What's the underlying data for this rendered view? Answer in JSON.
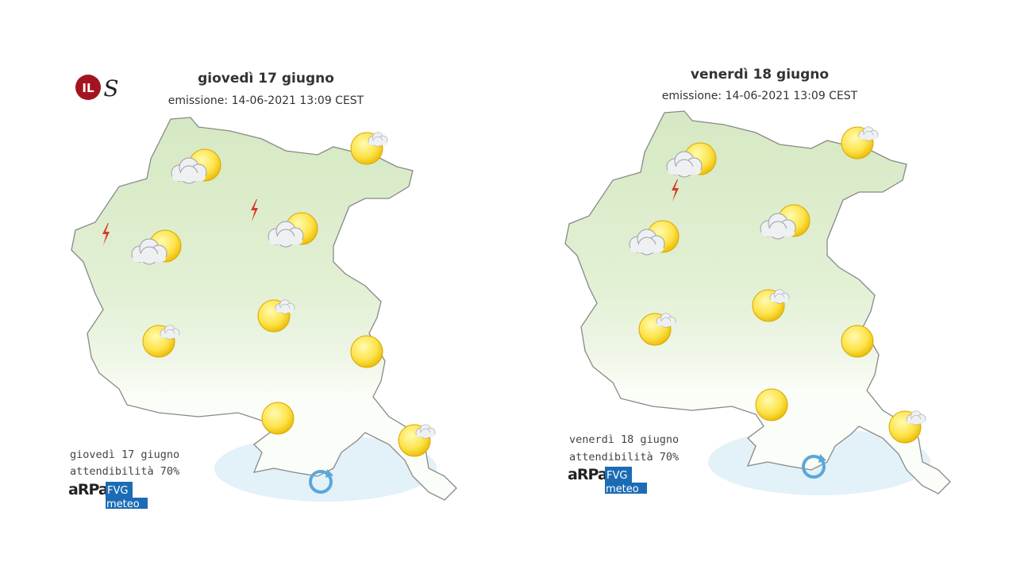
{
  "logo": {
    "circle": "IL",
    "letter": "S"
  },
  "panels": [
    {
      "title": "giovedì 17 giugno",
      "issued": "emissione: 14-06-2021 13:09 CEST",
      "footer_date": "giovedì 17 giugno",
      "reliability": "attendibilità 70%",
      "brand": {
        "arpa": "aRPa",
        "fvg": "FVG",
        "meteo": "meteo"
      }
    },
    {
      "title": "venerdì 18 giugno",
      "issued": "emissione: 14-06-2021 13:09 CEST",
      "footer_date": "venerdì 18 giugno",
      "reliability": "attendibilità 70%",
      "brand": {
        "arpa": "aRPa",
        "fvg": "FVG",
        "meteo": "meteo"
      }
    }
  ]
}
